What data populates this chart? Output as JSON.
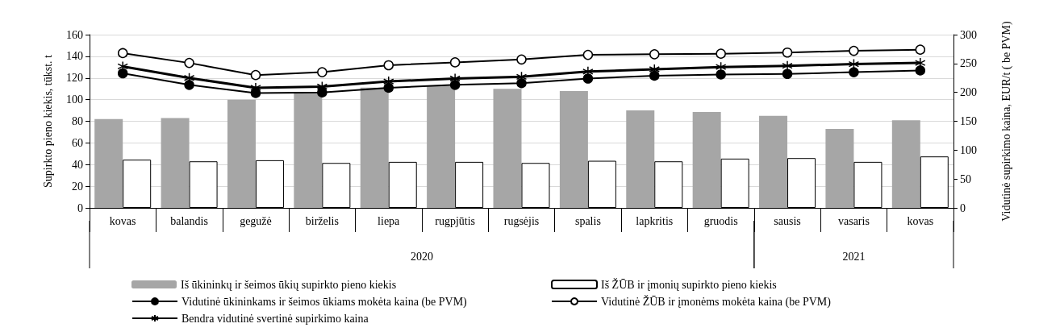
{
  "chart_data": {
    "type": "bar",
    "ylabel": "Supirkto pieno kiekis, tūkst. t",
    "y2label": "Vidutinė supirkimo kaina, EUR/t ( be PVM)",
    "categories": [
      "kovas",
      "balandis",
      "gegužė",
      "birželis",
      "liepa",
      "rugpjūtis",
      "rugsėjis",
      "spalis",
      "lapkritis",
      "gruodis",
      "sausis",
      "vasaris",
      "kovas"
    ],
    "series": [
      {
        "name": "Iš ūkininkų ir šeimos ūkių supirkto pieno kiekis",
        "color": "#a6a6a6",
        "values": [
          82,
          83,
          100,
          106,
          111,
          113,
          110,
          108,
          90,
          88.5,
          85,
          73,
          81
        ]
      },
      {
        "name": "Iš ŽŪB ir įmonių supirkto pieno kiekis",
        "color": "#ffffff",
        "values": [
          44.5,
          43,
          44,
          41.5,
          42.5,
          42.5,
          41.5,
          43.5,
          43,
          45.5,
          46,
          42.5,
          47.5
        ]
      },
      {
        "name": "Vidutinė ūkininkams ir šeimos ūkiams mokėta kaina (be PVM)",
        "type": "line",
        "axis": "y2",
        "color": "#000000",
        "marker": "circle",
        "values": [
          233,
          213,
          199,
          200,
          208,
          213,
          216,
          224,
          229,
          231,
          232,
          235,
          238
        ]
      },
      {
        "name": "Vidutinė ŽŪB ir įmonėms mokėta kaina (be PVM)",
        "type": "line",
        "axis": "y2",
        "color": "#ffffff",
        "marker": "circle",
        "values": [
          268,
          251,
          230,
          235,
          247,
          252,
          257,
          265,
          266,
          267,
          269,
          272,
          274
        ]
      },
      {
        "name": "Bendra vidutinė svertinė supirkimo kaina",
        "type": "line",
        "axis": "y2",
        "color": "#000000",
        "marker": "cross",
        "values": [
          245,
          225,
          208,
          210,
          219,
          224,
          227,
          236,
          240,
          244,
          246,
          249,
          251
        ]
      }
    ],
    "annotations": [
      "2020",
      "2021"
    ],
    "ylim": [
      0,
      160
    ],
    "yticks": [
      0,
      20,
      40,
      60,
      80,
      100,
      120,
      140,
      160
    ],
    "y2lim": [
      0,
      300
    ],
    "y2ticks": [
      0,
      50,
      100,
      150,
      200,
      250,
      300
    ],
    "grid": "y",
    "legend": "bottom"
  }
}
